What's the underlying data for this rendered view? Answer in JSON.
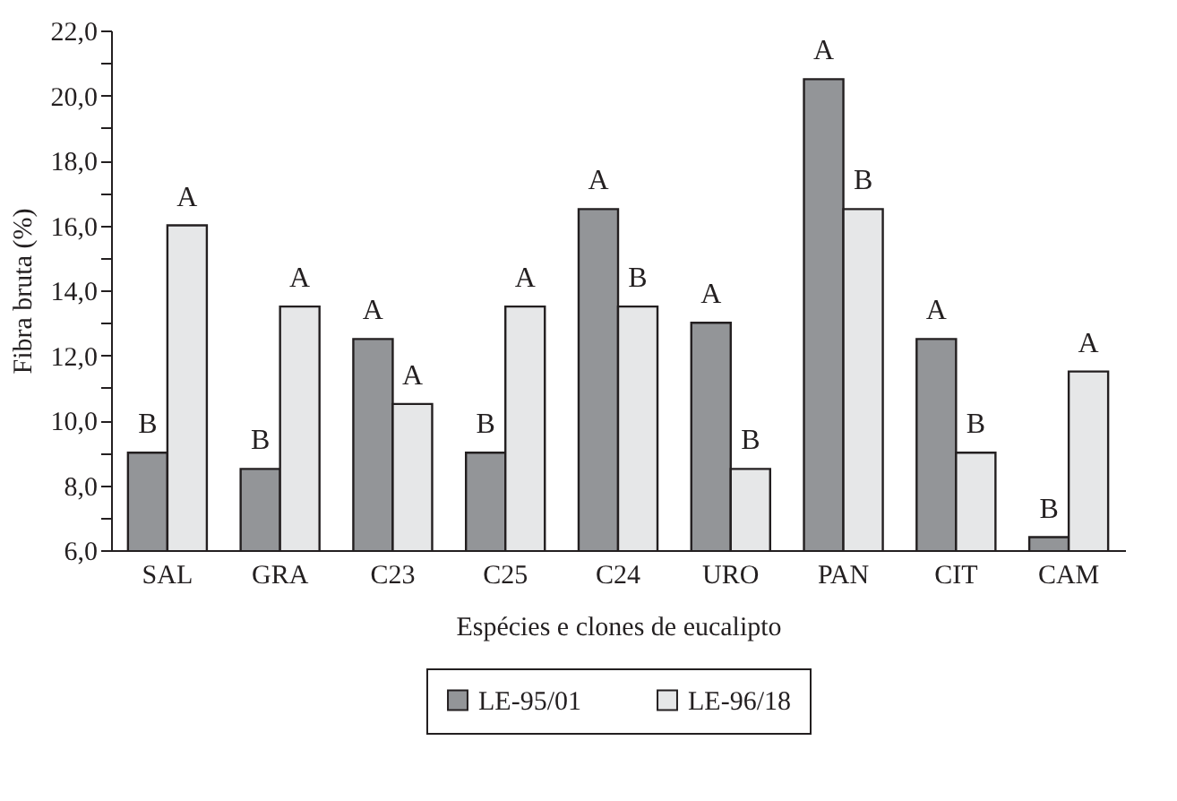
{
  "chart_data": {
    "type": "bar",
    "xlabel": "Espécies e clones de eucalipto",
    "ylabel": "Fibra bruta (%)",
    "categories": [
      "SAL",
      "GRA",
      "C23",
      "C25",
      "C24",
      "URO",
      "PAN",
      "CIT",
      "CAM"
    ],
    "series": [
      {
        "name": "LE-95/01",
        "color": "#939598",
        "values": [
          9.0,
          8.5,
          12.5,
          9.0,
          16.5,
          13.0,
          20.5,
          12.5,
          6.4
        ],
        "value_labels": [
          "B",
          "B",
          "A",
          "B",
          "A",
          "A",
          "A",
          "A",
          "B"
        ]
      },
      {
        "name": "LE-96/18",
        "color": "#e6e7e8",
        "values": [
          16.0,
          13.5,
          10.5,
          13.5,
          13.5,
          8.5,
          16.5,
          9.0,
          11.5
        ],
        "value_labels": [
          "A",
          "A",
          "A",
          "A",
          "B",
          "B",
          "B",
          "B",
          "A"
        ]
      }
    ],
    "ylim": [
      6,
      22
    ],
    "yticks": [
      {
        "value": 6,
        "label": "6,0"
      },
      {
        "value": 7,
        "label": null
      },
      {
        "value": 8,
        "label": "8,0"
      },
      {
        "value": 9,
        "label": null
      },
      {
        "value": 10,
        "label": "10,0"
      },
      {
        "value": 11,
        "label": null
      },
      {
        "value": 12,
        "label": "12,0"
      },
      {
        "value": 13,
        "label": null
      },
      {
        "value": 14,
        "label": "14,0"
      },
      {
        "value": 15,
        "label": null
      },
      {
        "value": 16,
        "label": "16,0"
      },
      {
        "value": 17,
        "label": null
      },
      {
        "value": 18,
        "label": "18,0"
      },
      {
        "value": 19,
        "label": null
      },
      {
        "value": 20,
        "label": "20,0"
      },
      {
        "value": 21,
        "label": null
      },
      {
        "value": 22,
        "label": "22,0"
      }
    ],
    "grid": false,
    "legend": "bottom"
  }
}
